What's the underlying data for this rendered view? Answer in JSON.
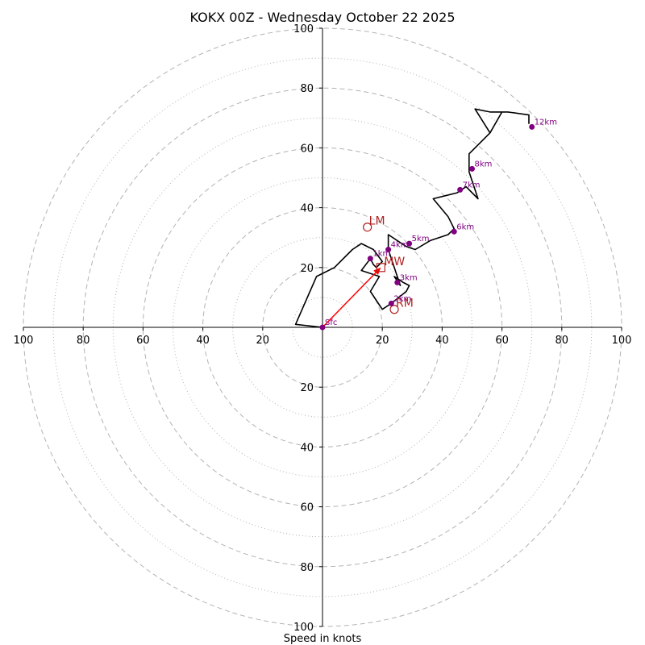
{
  "chart_data": {
    "type": "hodograph",
    "title": "KOKX 00Z - Wednesday October 22 2025",
    "xlabel": "Speed in knots",
    "range": [
      -100,
      100
    ],
    "rings_major": [
      20,
      40,
      60,
      80,
      100
    ],
    "rings_minor": [
      10,
      30,
      50,
      70,
      90
    ],
    "x_ticks": [
      {
        "value": -100,
        "label": "100"
      },
      {
        "value": -80,
        "label": "80"
      },
      {
        "value": -60,
        "label": "60"
      },
      {
        "value": -40,
        "label": "40"
      },
      {
        "value": -20,
        "label": "20"
      },
      {
        "value": 20,
        "label": "20"
      },
      {
        "value": 40,
        "label": "40"
      },
      {
        "value": 60,
        "label": "60"
      },
      {
        "value": 80,
        "label": "80"
      },
      {
        "value": 100,
        "label": "100"
      }
    ],
    "y_ticks": [
      {
        "value": 100,
        "label": "100"
      },
      {
        "value": 80,
        "label": "80"
      },
      {
        "value": 60,
        "label": "60"
      },
      {
        "value": 40,
        "label": "40"
      },
      {
        "value": 20,
        "label": "20"
      },
      {
        "value": -20,
        "label": "20"
      },
      {
        "value": -40,
        "label": "40"
      },
      {
        "value": -60,
        "label": "60"
      },
      {
        "value": -80,
        "label": "80"
      },
      {
        "value": -100,
        "label": "100"
      }
    ],
    "trace": [
      [
        0,
        0
      ],
      [
        -9,
        1
      ],
      [
        -2,
        17
      ],
      [
        4,
        20
      ],
      [
        10,
        26
      ],
      [
        13,
        28
      ],
      [
        17,
        26
      ],
      [
        20,
        22
      ],
      [
        18,
        20
      ],
      [
        17,
        21
      ],
      [
        16,
        23
      ],
      [
        13,
        19
      ],
      [
        19,
        17
      ],
      [
        16,
        12
      ],
      [
        20,
        6
      ],
      [
        23,
        8
      ],
      [
        28,
        12
      ],
      [
        29,
        14
      ],
      [
        27,
        15
      ],
      [
        24,
        17
      ],
      [
        26,
        14
      ],
      [
        22,
        26
      ],
      [
        22,
        31
      ],
      [
        28,
        27
      ],
      [
        31,
        26
      ],
      [
        36,
        29
      ],
      [
        42,
        31
      ],
      [
        44,
        33
      ],
      [
        42,
        37
      ],
      [
        37,
        43
      ],
      [
        41,
        44
      ],
      [
        45,
        45
      ],
      [
        48,
        47
      ],
      [
        52,
        43
      ],
      [
        49,
        52
      ],
      [
        49,
        58
      ],
      [
        56,
        65
      ],
      [
        60,
        72
      ],
      [
        56,
        65
      ],
      [
        51,
        73
      ],
      [
        56,
        72
      ],
      [
        62,
        72
      ],
      [
        69,
        71
      ],
      [
        69,
        68
      ]
    ],
    "height_labels": [
      {
        "label": "Sfc",
        "u": 0,
        "v": 0
      },
      {
        "label": "1km",
        "u": 16,
        "v": 23
      },
      {
        "label": "2km",
        "u": 23,
        "v": 8
      },
      {
        "label": "3km",
        "u": 25,
        "v": 15
      },
      {
        "label": "4km",
        "u": 22,
        "v": 26
      },
      {
        "label": "5km",
        "u": 29,
        "v": 28
      },
      {
        "label": "6km",
        "u": 44,
        "v": 32
      },
      {
        "label": "7km",
        "u": 46,
        "v": 46
      },
      {
        "label": "8km",
        "u": 50,
        "v": 53
      },
      {
        "label": "12km",
        "u": 70,
        "v": 67
      }
    ],
    "storm_motion": {
      "mean_wind": {
        "label": "MW",
        "u": 19.5,
        "v": 20
      },
      "left_mover": {
        "label": "LM",
        "u": 15,
        "v": 33.5
      },
      "right_mover": {
        "label": "RM",
        "u": 24,
        "v": 6
      }
    },
    "colors": {
      "trace": "#000000",
      "height_label": "#800080",
      "storm_marker": "#b22222",
      "arrow": "#ff0000",
      "grid": "#b3b3b3"
    }
  }
}
